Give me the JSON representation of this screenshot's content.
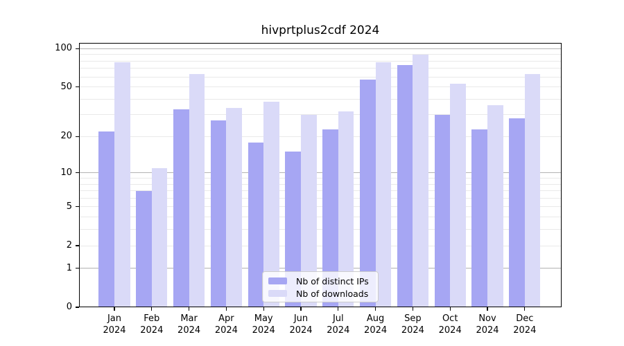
{
  "chart_data": {
    "type": "bar",
    "title": "hivprtplus2cdf 2024",
    "year_label": "2024",
    "categories": [
      "Jan",
      "Feb",
      "Mar",
      "Apr",
      "May",
      "Jun",
      "Jul",
      "Aug",
      "Sep",
      "Oct",
      "Nov",
      "Dec"
    ],
    "series": [
      {
        "name": "Nb of distinct IPs",
        "color": "#a6a6f3",
        "values": [
          22,
          7,
          33,
          27,
          18,
          15,
          23,
          57,
          74,
          30,
          23,
          28
        ]
      },
      {
        "name": "Nb of downloads",
        "color": "#dadaf8",
        "values": [
          78,
          11,
          63,
          34,
          38,
          30,
          32,
          78,
          90,
          53,
          36,
          63
        ]
      }
    ],
    "yscale": "log1p",
    "ylim": [
      0,
      120
    ],
    "yticks": [
      0,
      1,
      2,
      5,
      10,
      20,
      50,
      100
    ],
    "major_gridlines": [
      1,
      10,
      100
    ],
    "minor_gridlines": [
      2,
      3,
      4,
      5,
      6,
      7,
      8,
      9,
      20,
      30,
      40,
      50,
      60,
      70,
      80,
      90
    ],
    "grid": "on",
    "legend_position": "bottom-center",
    "colors": {
      "major_grid": "#b2b2b2",
      "minor_grid": "#e9e9e9",
      "spine": "#000000",
      "text": "#000000",
      "background": "#ffffff"
    }
  }
}
